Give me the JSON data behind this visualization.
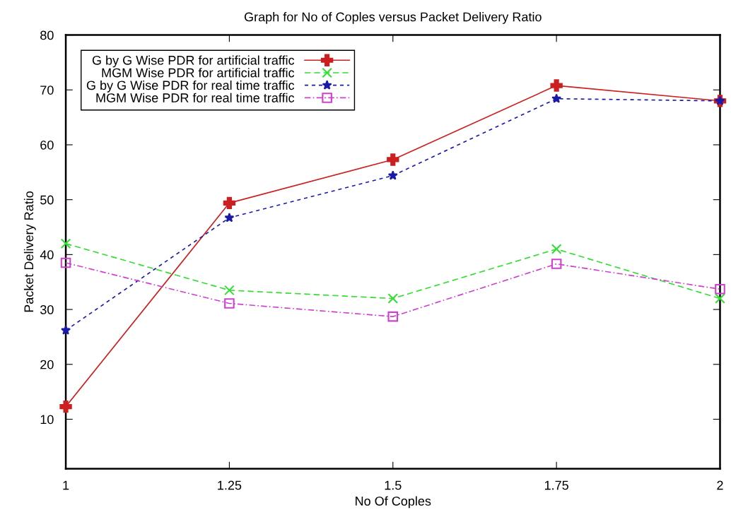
{
  "chart_data": {
    "type": "line",
    "title": "Graph for No of Coples versus Packet Delivery Ratio",
    "xlabel": "No Of Coples",
    "ylabel": "Packet Delivery Ratio",
    "x": [
      1,
      1.25,
      1.5,
      1.75,
      2
    ],
    "series": [
      {
        "name": "G by G Wise PDR for artificial traffic",
        "color": "#cc1f1f",
        "marker": "cross",
        "line_style": "solid",
        "values": [
          12.3,
          49.4,
          57.3,
          70.8,
          68
        ]
      },
      {
        "name": "MGM Wise PDR for artificial traffic",
        "color": "#33dd33",
        "marker": "cross",
        "line_style": "dashed",
        "values": [
          42,
          33.5,
          32,
          41,
          32
        ]
      },
      {
        "name": "G by G Wise PDR for real time traffic",
        "color": "#1a1aaa",
        "marker": "star",
        "line_style": "dotted",
        "values": [
          26.2,
          46.7,
          54.4,
          68.4,
          68
        ]
      },
      {
        "name": "MGM Wise PDR for real time traffic",
        "color": "#d040d0",
        "marker": "square",
        "line_style": "dashdot",
        "values": [
          38.5,
          31.1,
          28.7,
          38.3,
          33.7
        ]
      }
    ],
    "xlim": [
      1,
      2
    ],
    "xticks": [
      1,
      1.25,
      1.5,
      1.75,
      2
    ],
    "ylim": [
      1,
      80
    ],
    "yticks": [
      10,
      20,
      30,
      40,
      50,
      60,
      70,
      80
    ],
    "grid": false,
    "legend": "top left"
  }
}
